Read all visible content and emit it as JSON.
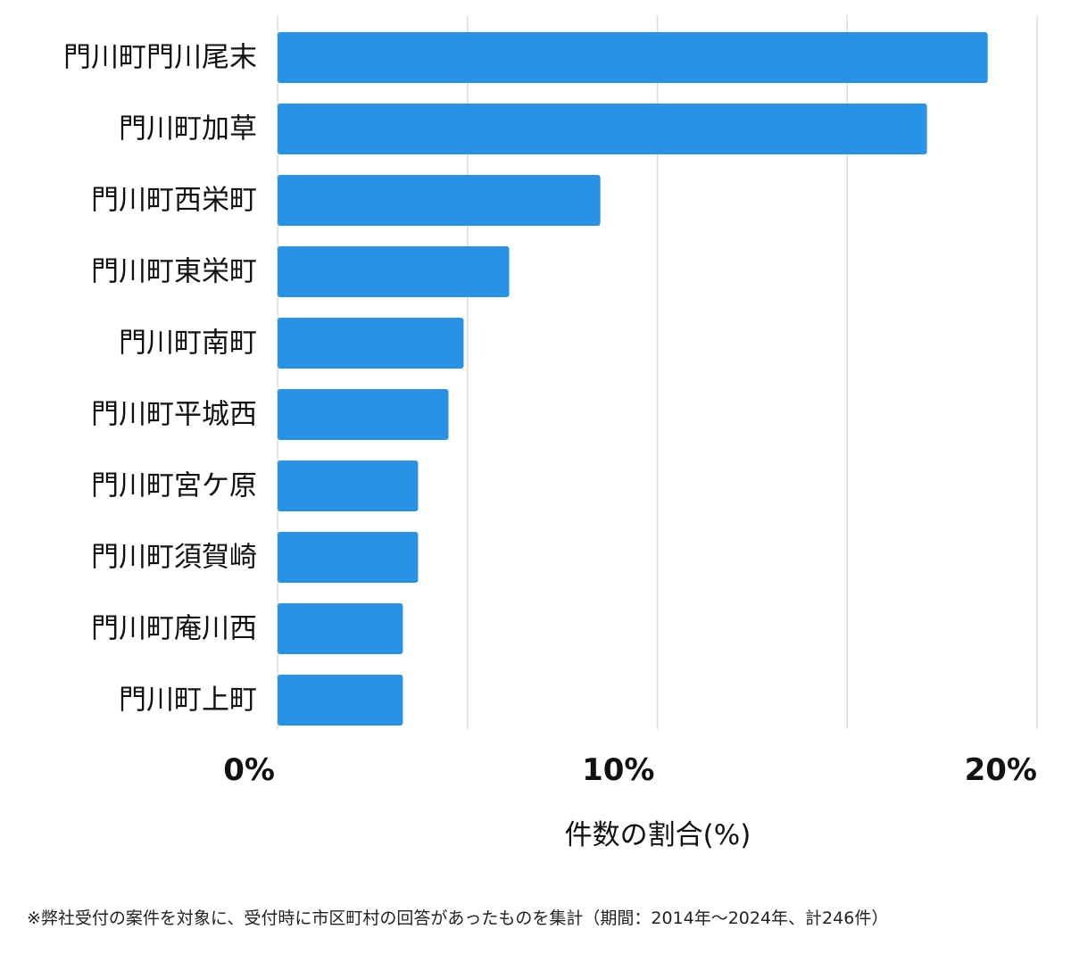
{
  "chart_data": {
    "type": "bar",
    "orientation": "horizontal",
    "categories": [
      "門川町門川尾末",
      "門川町加草",
      "門川町西栄町",
      "門川町東栄町",
      "門川町南町",
      "門川町平城西",
      "門川町宮ケ原",
      "門川町須賀崎",
      "門川町庵川西",
      "門川町上町"
    ],
    "values": [
      18.7,
      17.1,
      8.5,
      6.1,
      4.9,
      4.5,
      3.7,
      3.7,
      3.3,
      3.3
    ],
    "xlim": [
      0,
      20
    ],
    "xticks": [
      0,
      10,
      20
    ],
    "tick_labels": [
      "0%",
      "10%",
      "20%"
    ],
    "xlabel": "件数の割合(%)",
    "ylabel": "",
    "title": "",
    "grid": "vertical",
    "bar_color": "#2893e6",
    "grid_color": "#dddddd"
  },
  "footnote": "※弊社受付の案件を対象に、受付時に市区町村の回答があったものを集計（期間：2014年〜2024年、計246件）"
}
